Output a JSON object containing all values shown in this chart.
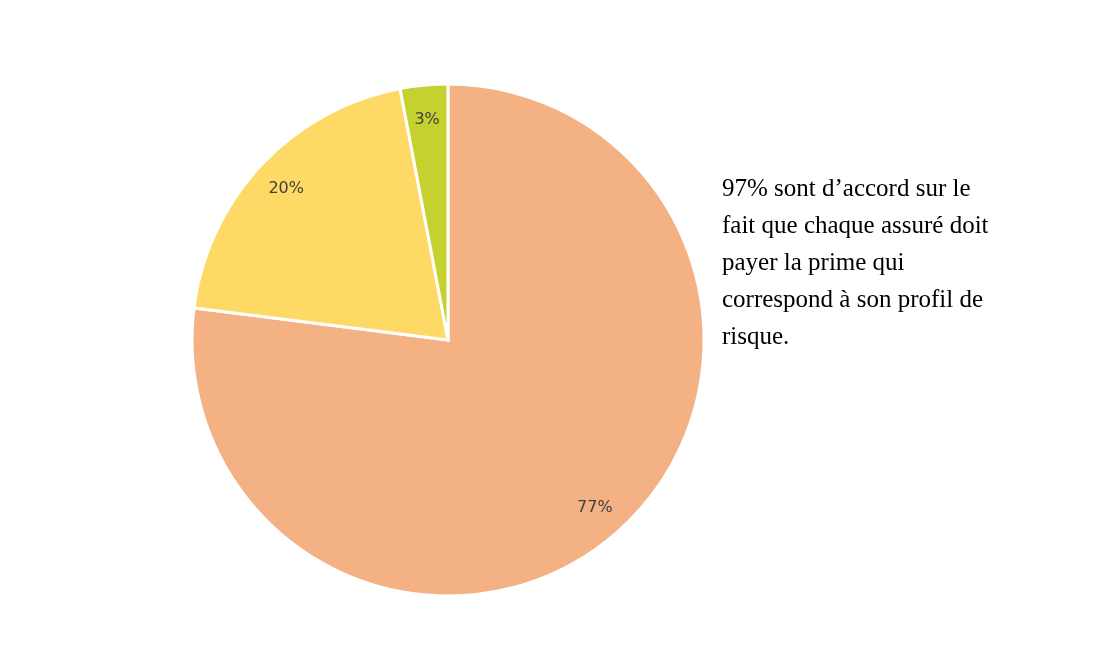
{
  "chart_data": {
    "type": "pie",
    "categories": [
      null,
      null,
      null
    ],
    "values": [
      77,
      20,
      3
    ],
    "colors": [
      "#f4b183",
      "#ffd966",
      "#c5d12e"
    ],
    "value_labels": [
      "77%",
      "20%",
      "3%"
    ],
    "annotations": [
      "97% sont d’accord sur le fait que chaque assuré doit payer la prime qui correspond à son profil de risque."
    ]
  }
}
